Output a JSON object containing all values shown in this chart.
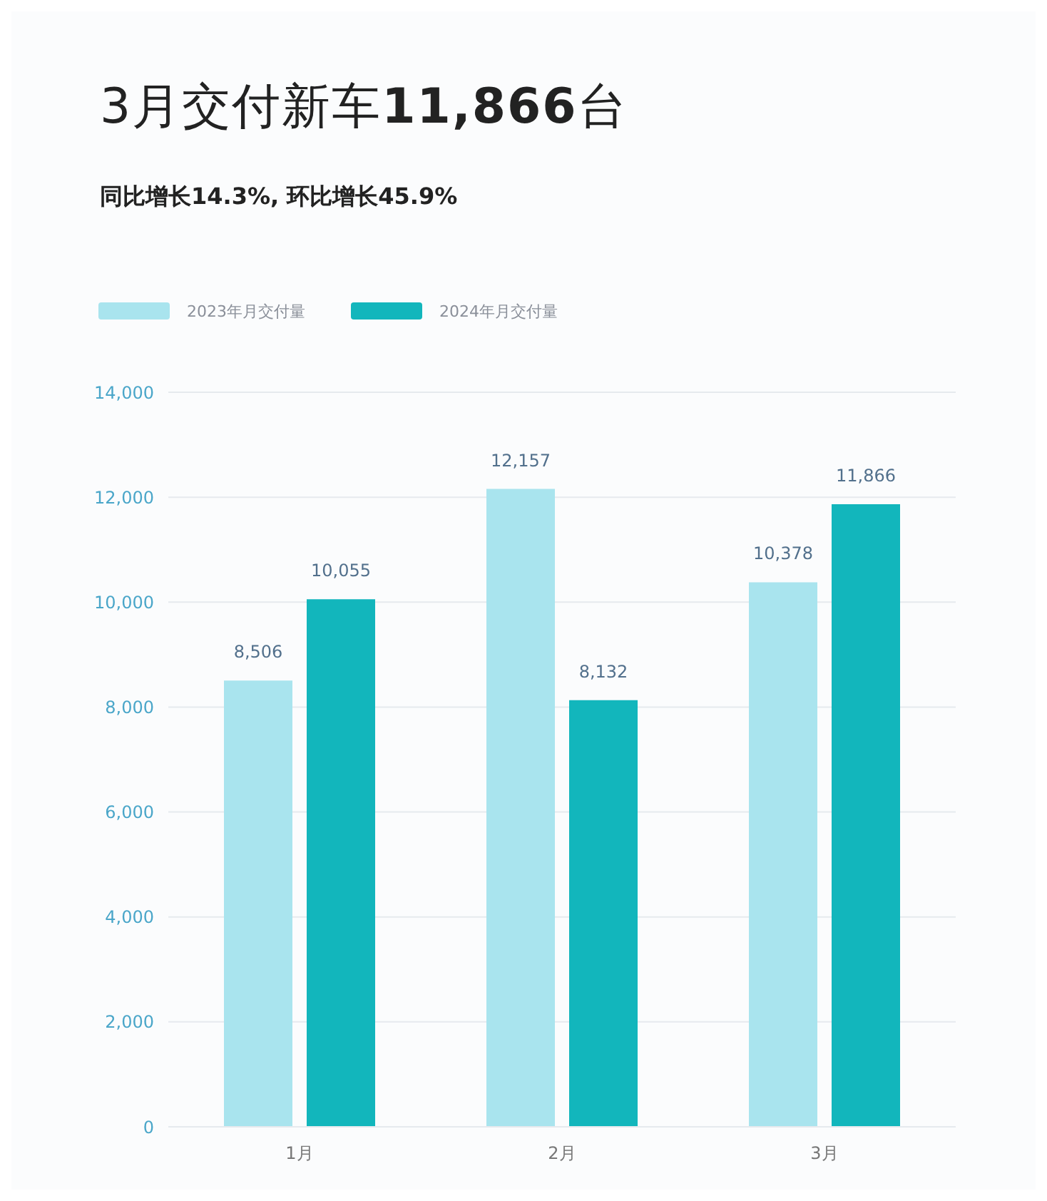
{
  "chart_data": {
    "type": "bar",
    "title": "3月交付新车11,866台",
    "subtitle": "同比增长14.3%, 环比增长45.9%",
    "categories": [
      "1月",
      "2月",
      "3月"
    ],
    "series": [
      {
        "name": "2023年月交付量",
        "color": "#a9e4ee",
        "values": [
          8506,
          12157,
          10378
        ],
        "value_labels": [
          "8,506",
          "12,157",
          "10,378"
        ]
      },
      {
        "name": "2024年月交付量",
        "color": "#12b6bc",
        "values": [
          10055,
          8132,
          11866
        ],
        "value_labels": [
          "10,055",
          "8,132",
          "11,866"
        ]
      }
    ],
    "ylim": [
      0,
      14000
    ],
    "yticks": [
      0,
      {
        "value": 2000,
        "label": "2,000"
      },
      {
        "value": 4000,
        "label": "4,000"
      },
      {
        "value": 6000,
        "label": "6,000"
      },
      {
        "value": 8000,
        "label": "8,000"
      },
      {
        "value": 10000,
        "label": "10,000"
      },
      {
        "value": 12000,
        "label": "12,000"
      },
      {
        "value": 14000,
        "label": "14,000"
      }
    ],
    "grid": "y",
    "legend": "top left"
  }
}
